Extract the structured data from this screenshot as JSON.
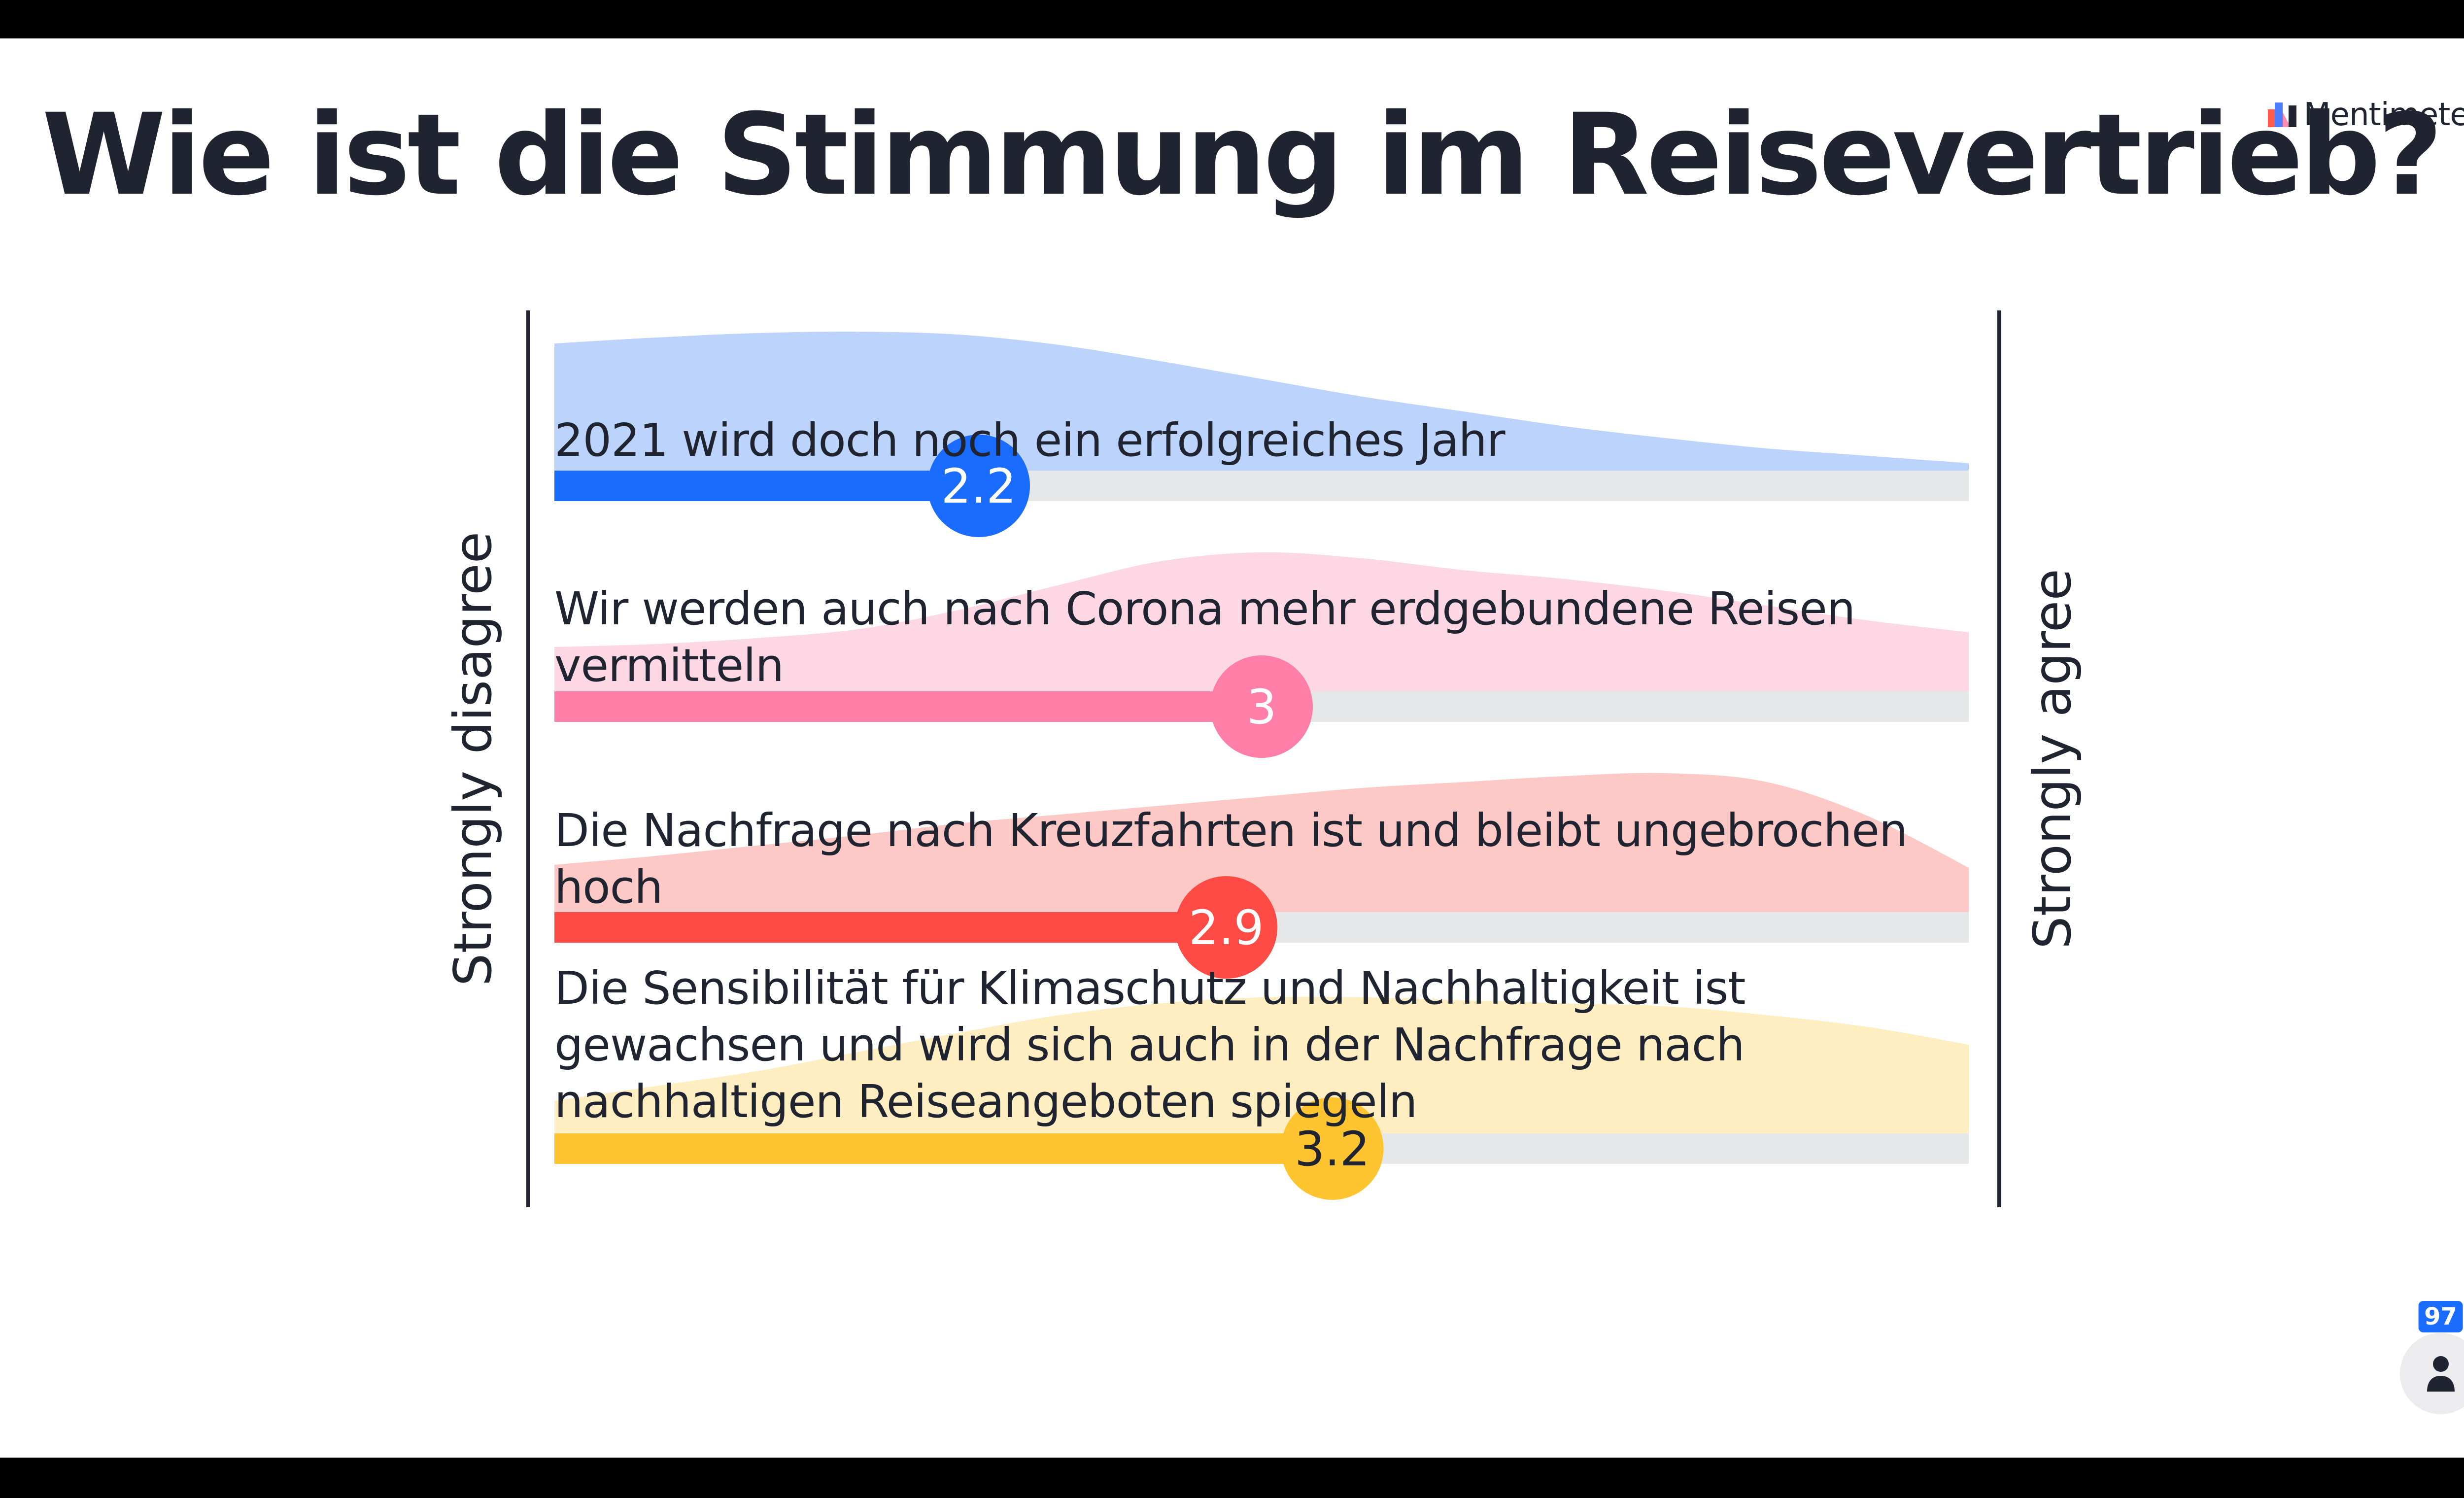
{
  "slide": {
    "title": "Wie ist die Stimmung im Reisevertrieb?",
    "brand": "Mentimeter"
  },
  "participants": {
    "count": "97",
    "icon": "person-icon"
  },
  "chart_data": {
    "type": "scales",
    "scale_min": 1,
    "scale_max": 5,
    "left_label": "Strongly disagree",
    "right_label": "Strongly agree",
    "statements": [
      {
        "text": "2021 wird doch noch ein erfolgreiches Jahr",
        "value": 2.2,
        "value_label": "2.2",
        "color": "#1a6bff",
        "fill": "#bcd3fb",
        "value_text_color": "#ffffff",
        "distribution": [
          0.86,
          0.9,
          0.93,
          0.94,
          0.92,
          0.85,
          0.74,
          0.62,
          0.5,
          0.4,
          0.3,
          0.22,
          0.15,
          0.1,
          0.05
        ]
      },
      {
        "text": "Wir werden auch nach Corona mehr erdgebundene Reisen vermitteln",
        "value": 3,
        "value_label": "3",
        "color": "#ff7fa8",
        "fill": "#fdd8e4",
        "value_text_color": "#ffffff",
        "distribution": [
          0.3,
          0.32,
          0.36,
          0.42,
          0.55,
          0.72,
          0.88,
          0.94,
          0.9,
          0.82,
          0.76,
          0.68,
          0.58,
          0.48,
          0.4
        ]
      },
      {
        "text": "Die Nachfrage nach Kreuzfahrten ist und bleibt ungebrochen hoch",
        "value": 2.9,
        "value_label": "2.9",
        "color": "#ff4b45",
        "fill": "#fdc9c6",
        "value_text_color": "#ffffff",
        "distribution": [
          0.32,
          0.38,
          0.45,
          0.52,
          0.6,
          0.66,
          0.72,
          0.78,
          0.84,
          0.88,
          0.92,
          0.94,
          0.88,
          0.65,
          0.3
        ]
      },
      {
        "text": "Die Sensibilität für Klimaschutz und Nachhaltigkeit ist gewachsen und wird sich auch in der Nachfrage nach nachhaltigen Reiseangeboten spiegeln",
        "value": 3.2,
        "value_label": "3.2",
        "color": "#ffc531",
        "fill": "#ffeec2",
        "value_text_color": "#1f2430",
        "distribution": [
          0.22,
          0.32,
          0.42,
          0.55,
          0.68,
          0.8,
          0.88,
          0.92,
          0.92,
          0.9,
          0.88,
          0.86,
          0.8,
          0.72,
          0.6
        ]
      }
    ]
  }
}
